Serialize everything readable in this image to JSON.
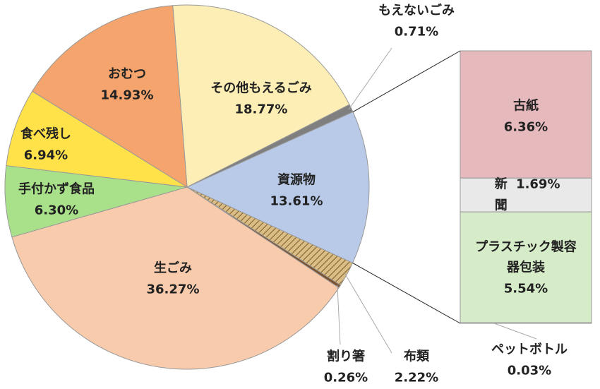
{
  "chart_data": {
    "type": "pie",
    "categories": [
      "その他もえるごみ",
      "もえないごみ",
      "資源物",
      "布類",
      "割り箸",
      "生ごみ",
      "手付かず食品",
      "食べ残し",
      "おむつ"
    ],
    "values": [
      18.77,
      0.71,
      13.61,
      2.22,
      0.26,
      36.27,
      6.3,
      6.94,
      14.93
    ],
    "value_labels": [
      "18.77%",
      "0.71%",
      "13.61%",
      "2.22%",
      "0.26%",
      "36.27%",
      "6.30%",
      "6.94%",
      "14.93%"
    ],
    "colors": [
      "#fdeeb5",
      "#7f7f7f",
      "#b8cae8",
      "#c8a66a",
      "#7a5230",
      "#f8cbad",
      "#a9e08a",
      "#ffe24a",
      "#f4a46c"
    ],
    "exploded_slice": 2,
    "breakdown": {
      "categories": [
        "古紙",
        "新聞",
        "プラスチック製容器包装",
        "ペットボトル"
      ],
      "values": [
        6.36,
        1.69,
        5.54,
        0.03
      ],
      "value_labels": [
        "6.36%",
        "1.69%",
        "5.54%",
        "0.03%"
      ],
      "colors": [
        "#e6b9bd",
        "#e9e9e9",
        "#d6ecc9",
        "#ffffff"
      ]
    }
  }
}
